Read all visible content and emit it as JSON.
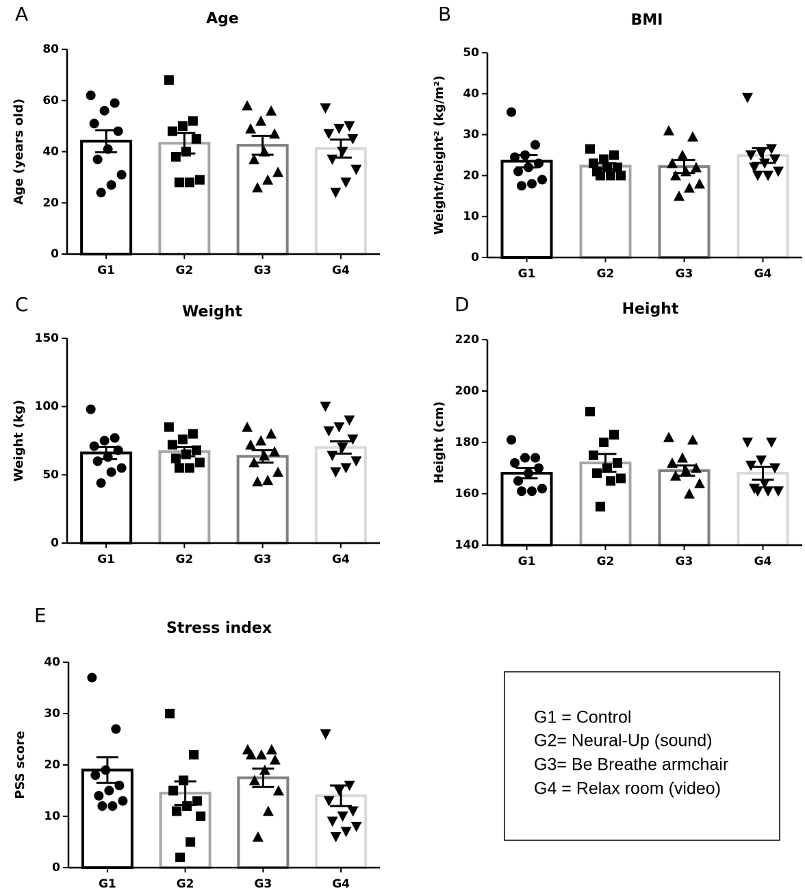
{
  "chart_data": [
    {
      "type": "bar",
      "panel": "A",
      "title": "Age",
      "ylabel": "Age (years old)",
      "categories": [
        "G1",
        "G2",
        "G3",
        "G4"
      ],
      "values": [
        44.1,
        43.3,
        42.5,
        41.2
      ],
      "errors": [
        4.3,
        4.0,
        3.7,
        3.5
      ],
      "points": [
        [
          62,
          59,
          56,
          51,
          48,
          41,
          37,
          31,
          27,
          24
        ],
        [
          68,
          52,
          50,
          48,
          45,
          40,
          38,
          29,
          28,
          28
        ],
        [
          58,
          56,
          52,
          49,
          47,
          40,
          37,
          32,
          29,
          26
        ],
        [
          57,
          50,
          49,
          47,
          45,
          40,
          37,
          33,
          28,
          24
        ]
      ],
      "colors": [
        "#000000",
        "#a6a6a6",
        "#808080",
        "#d9d9d9"
      ],
      "markers": [
        "circle",
        "square",
        "triangle-up",
        "triangle-down"
      ],
      "ylim": [
        0,
        80
      ],
      "yticks": [
        0,
        20,
        40,
        60,
        80
      ]
    },
    {
      "type": "bar",
      "panel": "B",
      "title": "BMI",
      "ylabel": "Weight/height² (kg/m²)",
      "categories": [
        "G1",
        "G2",
        "G3",
        "G4"
      ],
      "values": [
        23.5,
        22.3,
        22.2,
        24.9
      ],
      "errors": [
        1.5,
        0.7,
        1.6,
        1.8
      ],
      "points": [
        [
          35.5,
          27.5,
          25,
          24.5,
          23,
          22,
          21,
          19,
          18,
          17.5
        ],
        [
          26.5,
          25,
          24,
          23,
          22,
          22,
          21,
          20,
          20,
          20
        ],
        [
          31,
          29.5,
          25,
          23,
          22,
          21,
          20,
          18,
          17,
          15
        ],
        [
          39,
          26.5,
          25.5,
          25,
          24,
          23,
          22,
          21,
          20,
          20
        ]
      ],
      "colors": [
        "#000000",
        "#a6a6a6",
        "#808080",
        "#d9d9d9"
      ],
      "markers": [
        "circle",
        "square",
        "triangle-up",
        "triangle-down"
      ],
      "ylim": [
        0,
        50
      ],
      "yticks": [
        0,
        10,
        20,
        30,
        40,
        50
      ]
    },
    {
      "type": "bar",
      "panel": "C",
      "title": "Weight",
      "ylabel": "Weight (kg)",
      "categories": [
        "G1",
        "G2",
        "G3",
        "G4"
      ],
      "values": [
        66,
        67,
        63.5,
        70
      ],
      "errors": [
        4.5,
        3.5,
        4.5,
        4.5
      ],
      "points": [
        [
          98,
          77,
          75,
          71,
          68,
          63,
          60,
          55,
          52,
          44
        ],
        [
          85,
          80,
          76,
          72,
          68,
          65,
          62,
          59,
          55,
          55
        ],
        [
          85,
          80,
          75,
          72,
          67,
          64,
          59,
          52,
          46,
          45
        ],
        [
          100,
          90,
          85,
          82,
          76,
          70,
          64,
          60,
          55,
          52
        ]
      ],
      "colors": [
        "#000000",
        "#a6a6a6",
        "#808080",
        "#d9d9d9"
      ],
      "markers": [
        "circle",
        "square",
        "triangle-up",
        "triangle-down"
      ],
      "ylim": [
        0,
        150
      ],
      "yticks": [
        0,
        50,
        100,
        150
      ]
    },
    {
      "type": "bar",
      "panel": "D",
      "title": "Height",
      "ylabel": "Height (cm)",
      "categories": [
        "G1",
        "G2",
        "G3",
        "G4"
      ],
      "values": [
        168,
        172,
        169,
        168
      ],
      "errors": [
        2,
        3.5,
        2,
        2.5
      ],
      "points": [
        [
          181,
          174,
          174,
          172,
          170,
          168,
          165,
          162,
          161,
          161
        ],
        [
          192,
          183,
          180,
          175,
          172,
          170,
          168,
          166,
          165,
          155
        ],
        [
          182,
          181,
          174,
          172,
          170,
          169,
          167,
          164,
          160
        ],
        [
          180,
          180,
          173,
          171,
          170,
          164,
          162,
          161,
          161,
          161
        ]
      ],
      "colors": [
        "#000000",
        "#a6a6a6",
        "#808080",
        "#d9d9d9"
      ],
      "markers": [
        "circle",
        "square",
        "triangle-up",
        "triangle-down"
      ],
      "ylim": [
        140,
        220
      ],
      "yticks": [
        140,
        160,
        180,
        200,
        220
      ]
    },
    {
      "type": "bar",
      "panel": "E",
      "title": "Stress index",
      "ylabel": "PSS score",
      "categories": [
        "G1",
        "G2",
        "G3",
        "G4"
      ],
      "values": [
        19,
        14.5,
        17.5,
        14
      ],
      "errors": [
        2.5,
        2.3,
        1.8,
        2
      ],
      "points": [
        [
          37,
          27,
          19,
          18,
          16,
          15,
          14,
          13,
          12,
          12
        ],
        [
          30,
          22,
          17,
          15,
          13,
          12,
          11,
          10,
          5,
          2
        ],
        [
          23,
          23,
          22,
          22,
          21,
          19,
          17,
          15,
          11,
          6
        ],
        [
          26,
          16,
          15,
          13,
          11,
          10,
          9,
          8,
          7,
          6
        ]
      ],
      "colors": [
        "#000000",
        "#a6a6a6",
        "#808080",
        "#d9d9d9"
      ],
      "markers": [
        "circle",
        "square",
        "triangle-up",
        "triangle-down"
      ],
      "ylim": [
        0,
        40
      ],
      "yticks": [
        0,
        10,
        20,
        30,
        40
      ]
    }
  ],
  "legend_box": {
    "lines": [
      "G1 = Control",
      "G2= Neural-Up (sound)",
      "G3= Be Breathe armchair",
      "G4 = Relax room (video)"
    ]
  }
}
